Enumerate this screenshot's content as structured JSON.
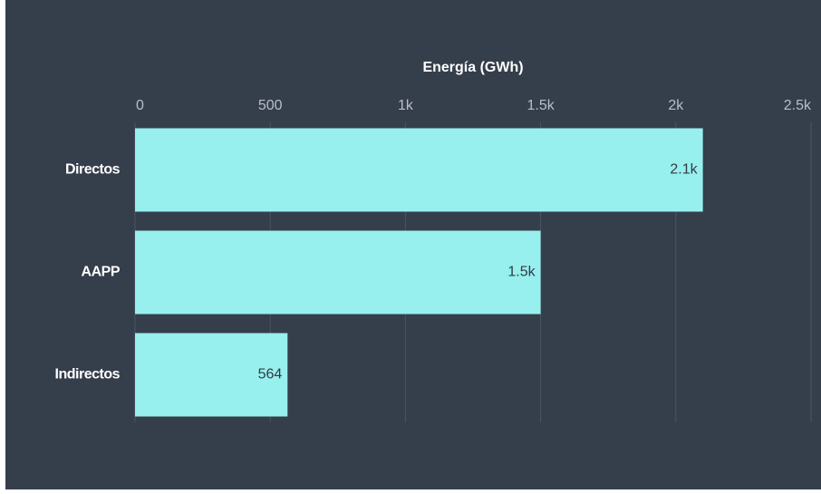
{
  "chart_data": {
    "type": "bar",
    "orientation": "horizontal",
    "x_label": "Energía (GWh)",
    "categories": [
      "Directos",
      "AAPP",
      "Indirectos"
    ],
    "values": [
      2100,
      1500,
      564
    ],
    "value_labels": [
      "2.1k",
      "1.5k",
      "564"
    ],
    "color": "#98f0ee",
    "xlim": [
      0,
      2500
    ],
    "xticks": [
      0,
      500,
      {
        "value": 1000,
        "label": "1k"
      },
      {
        "value": 1500,
        "label": "1.5k"
      },
      {
        "value": 2000,
        "label": "2k"
      },
      {
        "value": 2500,
        "label": "2.5k"
      }
    ],
    "grid": true
  }
}
